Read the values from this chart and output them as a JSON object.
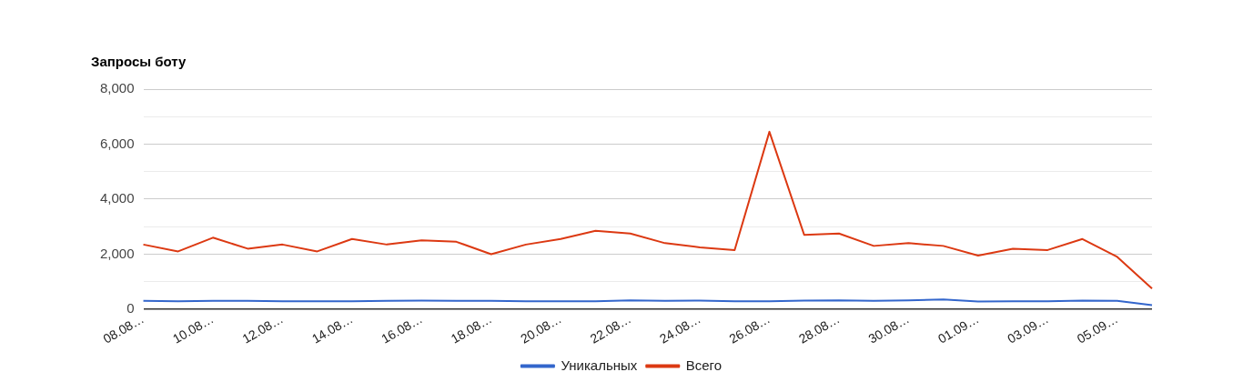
{
  "chart_data": {
    "type": "line",
    "title": "Запросы боту",
    "categories": [
      "08.08…",
      null,
      "10.08…",
      null,
      "12.08…",
      null,
      "14.08…",
      null,
      "16.08…",
      null,
      "18.08…",
      null,
      "20.08…",
      null,
      "22.08…",
      null,
      "24.08…",
      null,
      "26.08…",
      null,
      "28.08…",
      null,
      "30.08…",
      null,
      "01.09…",
      null,
      "03.09…",
      null,
      "05.09…",
      null
    ],
    "series": [
      {
        "name": "Уникальных",
        "color": "#3366cc",
        "values": [
          300,
          290,
          300,
          300,
          290,
          290,
          290,
          300,
          310,
          300,
          300,
          290,
          290,
          290,
          320,
          300,
          310,
          290,
          290,
          310,
          320,
          300,
          320,
          350,
          280,
          290,
          290,
          310,
          300,
          150
        ]
      },
      {
        "name": "Всего",
        "color": "#dc3912",
        "values": [
          2350,
          2100,
          2600,
          2200,
          2350,
          2100,
          2550,
          2350,
          2500,
          2450,
          2000,
          2350,
          2550,
          2850,
          2750,
          2400,
          2250,
          2150,
          6450,
          2700,
          2750,
          2300,
          2400,
          2300,
          1950,
          2200,
          2150,
          2550,
          1900,
          750
        ]
      }
    ],
    "ylim": [
      0,
      8000
    ],
    "yticks": [
      {
        "value": 0,
        "label": "0"
      },
      {
        "value": 1000,
        "label": null
      },
      {
        "value": 2000,
        "label": "2,000"
      },
      {
        "value": 3000,
        "label": null
      },
      {
        "value": 4000,
        "label": "4,000"
      },
      {
        "value": 5000,
        "label": null
      },
      {
        "value": 6000,
        "label": "6,000"
      },
      {
        "value": 7000,
        "label": null
      },
      {
        "value": 8000,
        "label": "8,000"
      }
    ],
    "grid": "y",
    "legend": "bottom",
    "marker": "none",
    "line_style": "solid"
  }
}
